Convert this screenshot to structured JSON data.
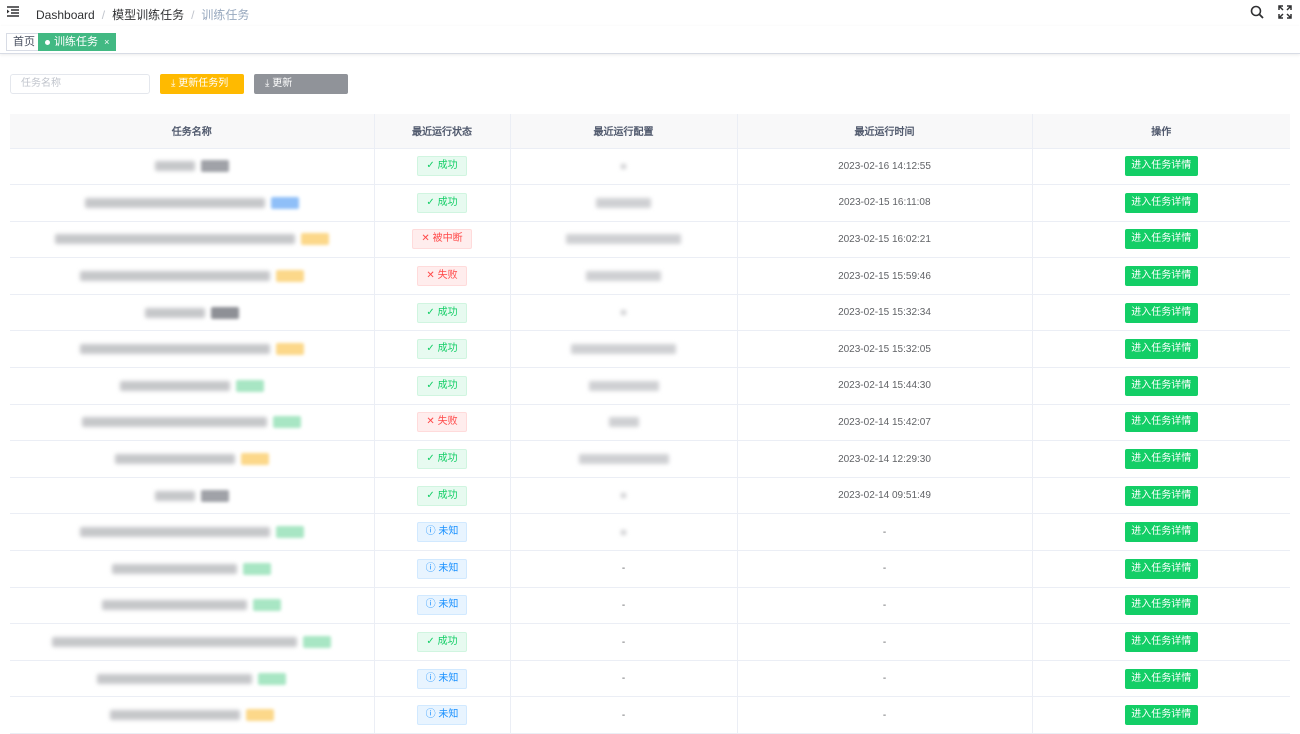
{
  "breadcrumb": [
    "Dashboard",
    "模型训练任务",
    "训练任务"
  ],
  "tags": {
    "home": "首页",
    "active": "训练任务",
    "close": "×"
  },
  "toolbar": {
    "search_placeholder": "任务名称",
    "update_tasks": "更新任务列表",
    "update_core": "更新Sonic_core",
    "download_icon": "⤓"
  },
  "table": {
    "headers": [
      "任务名称",
      "最近运行状态",
      "最近运行配置",
      "最近运行时间",
      "操作"
    ],
    "action_label": "进入任务详情",
    "status_labels": {
      "ok": "✓ 成功",
      "err_interrupt": "✕ 被中断",
      "err": "✕ 失败",
      "unk": "ⓘ 未知"
    },
    "rows": [
      {
        "status": "ok",
        "tag": "#a0a2a8",
        "cfg": "dot",
        "time": "2023-02-16 14:12:55"
      },
      {
        "status": "ok",
        "tag": "#8fbff8",
        "cfg": "blur",
        "time": "2023-02-15 16:11:08"
      },
      {
        "status": "err_interrupt",
        "tag": "#fcd88a",
        "cfg": "blur",
        "time": "2023-02-15 16:02:21"
      },
      {
        "status": "err",
        "tag": "#fcd88a",
        "cfg": "blur",
        "time": "2023-02-15 15:59:46"
      },
      {
        "status": "ok",
        "tag": "#8e9096",
        "cfg": "dot",
        "time": "2023-02-15 15:32:34"
      },
      {
        "status": "ok",
        "tag": "#fcd88a",
        "cfg": "blur",
        "time": "2023-02-15 15:32:05"
      },
      {
        "status": "ok",
        "tag": "#a8e6c4",
        "cfg": "blur",
        "time": "2023-02-14 15:44:30"
      },
      {
        "status": "err",
        "tag": "#a8e6c4",
        "cfg": "blur",
        "time": "2023-02-14 15:42:07"
      },
      {
        "status": "ok",
        "tag": "#fcd88a",
        "cfg": "blur",
        "time": "2023-02-14 12:29:30"
      },
      {
        "status": "ok",
        "tag": "#a0a2a8",
        "cfg": "dot",
        "time": "2023-02-14 09:51:49"
      },
      {
        "status": "unk",
        "tag": "#a8e6c4",
        "cfg": "dot",
        "time": "-"
      },
      {
        "status": "unk",
        "tag": "#a8e6c4",
        "cfg": "-",
        "time": "-"
      },
      {
        "status": "unk",
        "tag": "#a8e6c4",
        "cfg": "-",
        "time": "-"
      },
      {
        "status": "ok",
        "tag": "#a8e6c4",
        "cfg": "-",
        "time": "-"
      },
      {
        "status": "unk",
        "tag": "#a8e6c4",
        "cfg": "-",
        "time": "-"
      },
      {
        "status": "unk",
        "tag": "#fcd88a",
        "cfg": "-",
        "time": "-"
      }
    ]
  }
}
